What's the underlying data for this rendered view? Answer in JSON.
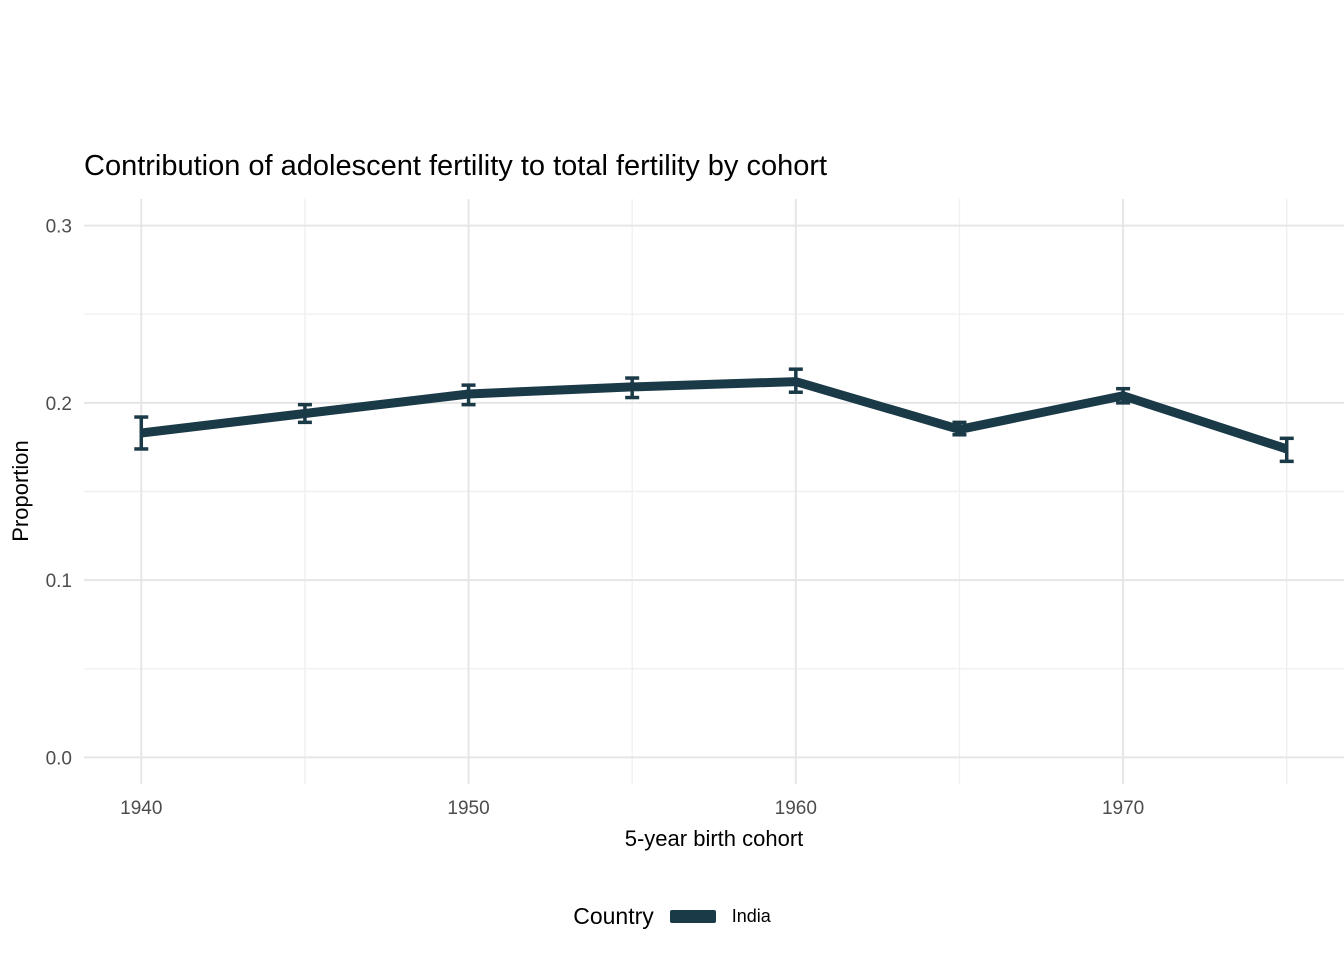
{
  "chart_data": {
    "type": "line",
    "title": "Contribution of adolescent fertility to total fertility by cohort",
    "xlabel": "5-year birth cohort",
    "ylabel": "Proportion",
    "x": [
      1940,
      1945,
      1950,
      1955,
      1960,
      1965,
      1970,
      1975
    ],
    "series": [
      {
        "name": "India",
        "color": "#1b3a48",
        "values": [
          0.183,
          0.194,
          0.205,
          0.209,
          0.212,
          0.185,
          0.204,
          0.174
        ],
        "ci_low": [
          0.174,
          0.189,
          0.199,
          0.203,
          0.206,
          0.182,
          0.2,
          0.167
        ],
        "ci_high": [
          0.192,
          0.199,
          0.21,
          0.214,
          0.219,
          0.189,
          0.208,
          0.18
        ]
      }
    ],
    "xlim": [
      1938.25,
      1976.75
    ],
    "ylim": [
      -0.015,
      0.315
    ],
    "x_ticks": [
      1940,
      1950,
      1960,
      1970
    ],
    "x_tick_labels": [
      "1940",
      "1950",
      "1960",
      "1970"
    ],
    "x_minor_ticks": [
      1945,
      1955,
      1965,
      1975
    ],
    "y_ticks": [
      0.0,
      0.1,
      0.2,
      0.3
    ],
    "y_tick_labels": [
      "0.0",
      "0.1",
      "0.2",
      "0.3"
    ],
    "y_minor_ticks": [
      0.05,
      0.15,
      0.25
    ],
    "grid": true,
    "legend": {
      "title": "Country",
      "position": "bottom",
      "entries": [
        {
          "label": "India",
          "color": "#1b3a48"
        }
      ]
    },
    "colors": {
      "series": "#1b3a48",
      "grid_major": "#e6e6e6",
      "grid_minor": "#f0f0f0",
      "tick_text": "#4d4d4d",
      "background": "#ffffff"
    }
  }
}
